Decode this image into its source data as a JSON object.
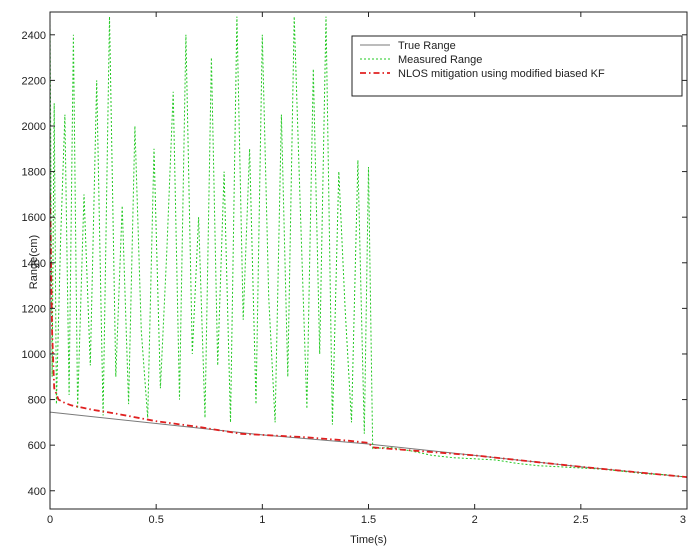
{
  "chart_data": {
    "type": "line",
    "title": "",
    "xlabel": "Time(s)",
    "ylabel": "Range(cm)",
    "xlim": [
      0,
      3
    ],
    "ylim": [
      320,
      2500
    ],
    "grid": false,
    "legend_position": "top-right",
    "x_ticks": [
      {
        "value": 0,
        "label": "0"
      },
      {
        "value": 0.5,
        "label": "0.5"
      },
      {
        "value": 1,
        "label": "1"
      },
      {
        "value": 1.5,
        "label": "1.5"
      },
      {
        "value": 2,
        "label": "2"
      },
      {
        "value": 2.5,
        "label": "2.5"
      },
      {
        "value": 3,
        "label": "3"
      }
    ],
    "y_ticks": [
      {
        "value": 400,
        "label": "400"
      },
      {
        "value": 600,
        "label": "600"
      },
      {
        "value": 800,
        "label": "800"
      },
      {
        "value": 1000,
        "label": "1000"
      },
      {
        "value": 1200,
        "label": "1200"
      },
      {
        "value": 1400,
        "label": "1400"
      },
      {
        "value": 1600,
        "label": "1600"
      },
      {
        "value": 1800,
        "label": "1800"
      },
      {
        "value": 2000,
        "label": "2000"
      },
      {
        "value": 2200,
        "label": "2200"
      },
      {
        "value": 2400,
        "label": "2400"
      }
    ],
    "series": [
      {
        "name": "True Range",
        "color": "#7a7a7a",
        "style": "solid",
        "x": [
          0,
          0.5,
          1,
          1.5,
          2,
          2.5,
          3
        ],
        "y": [
          745,
          695,
          645,
          605,
          555,
          505,
          460
        ]
      },
      {
        "name": "Measured Range",
        "color": "#22c822",
        "style": "dotted",
        "x": [
          0,
          0.01,
          0.02,
          0.03,
          0.05,
          0.07,
          0.09,
          0.11,
          0.13,
          0.16,
          0.19,
          0.22,
          0.25,
          0.28,
          0.31,
          0.34,
          0.37,
          0.4,
          0.43,
          0.46,
          0.49,
          0.52,
          0.55,
          0.58,
          0.61,
          0.64,
          0.67,
          0.7,
          0.73,
          0.76,
          0.79,
          0.82,
          0.85,
          0.88,
          0.91,
          0.94,
          0.97,
          1.0,
          1.03,
          1.06,
          1.09,
          1.12,
          1.15,
          1.18,
          1.21,
          1.24,
          1.27,
          1.3,
          1.33,
          1.36,
          1.39,
          1.42,
          1.45,
          1.48,
          1.5,
          1.52,
          1.6,
          1.7,
          1.8,
          1.9,
          2.0,
          2.1,
          2.2,
          2.3,
          2.4,
          2.5,
          2.6,
          2.7,
          2.8,
          2.9,
          3.0
        ],
        "y": [
          2480,
          900,
          2100,
          780,
          1500,
          2050,
          820,
          2400,
          760,
          1700,
          950,
          2200,
          730,
          2480,
          900,
          1650,
          780,
          2000,
          1100,
          720,
          1900,
          850,
          1450,
          2150,
          800,
          2400,
          1000,
          1600,
          720,
          2300,
          950,
          1800,
          700,
          2480,
          1150,
          1900,
          780,
          2400,
          1250,
          700,
          2050,
          900,
          2480,
          1600,
          760,
          2250,
          1000,
          2480,
          690,
          1800,
          1200,
          700,
          1850,
          650,
          1820,
          585,
          590,
          575,
          555,
          545,
          540,
          535,
          520,
          510,
          505,
          500,
          495,
          485,
          475,
          470,
          460
        ]
      },
      {
        "name": "NLOS mitigation using modified biased KF",
        "color": "#e02020",
        "style": "dashdot",
        "x": [
          0,
          0.01,
          0.02,
          0.04,
          0.07,
          0.1,
          0.2,
          0.3,
          0.5,
          0.7,
          0.9,
          1.0,
          1.2,
          1.4,
          1.5,
          1.52,
          2.0,
          2.5,
          3.0
        ],
        "y": [
          1700,
          1100,
          850,
          800,
          785,
          775,
          755,
          740,
          705,
          680,
          650,
          645,
          635,
          620,
          610,
          590,
          555,
          505,
          460
        ]
      }
    ]
  }
}
